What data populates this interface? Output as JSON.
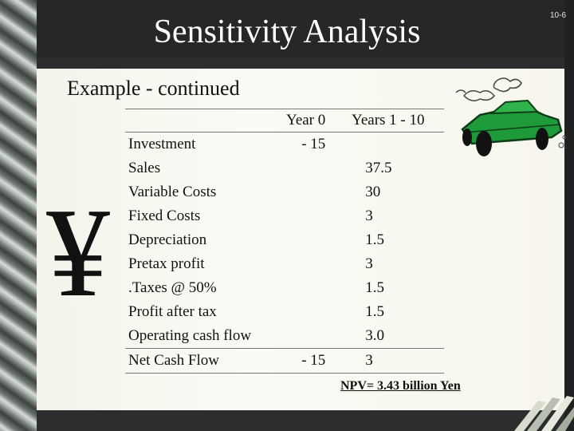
{
  "slide": {
    "title": "Sensitivity Analysis",
    "page_number": "10-6",
    "subtitle": "Example - continued",
    "currency_symbol": "¥",
    "npv": "NPV= 3.43 billion Yen"
  },
  "table": {
    "headers": [
      "",
      "Year 0",
      "Years 1 - 10"
    ],
    "rows": [
      {
        "label": "Investment",
        "year0": "- 15",
        "years1_10": ""
      },
      {
        "label": "Sales",
        "year0": "",
        "years1_10": "37.5"
      },
      {
        "label": "Variable Costs",
        "year0": "",
        "years1_10": "30"
      },
      {
        "label": "Fixed Costs",
        "year0": "",
        "years1_10": "3"
      },
      {
        "label": "Depreciation",
        "year0": "",
        "years1_10": "1.5"
      },
      {
        "label": "Pretax profit",
        "year0": "",
        "years1_10": "3"
      },
      {
        "label": ".Taxes @ 50%",
        "year0": "",
        "years1_10": "1.5"
      },
      {
        "label": "Profit after tax",
        "year0": "",
        "years1_10": "1.5"
      },
      {
        "label": "Operating cash flow",
        "year0": "",
        "years1_10": "3.0"
      },
      {
        "label": "Net Cash Flow",
        "year0": "- 15",
        "years1_10": "3"
      }
    ]
  },
  "colors": {
    "background": "#2b2e2c",
    "slide": "#f7f6ec",
    "car_body": "#1f9a3a"
  },
  "icons": [
    "car-clipart-icon",
    "decorative-slats"
  ]
}
